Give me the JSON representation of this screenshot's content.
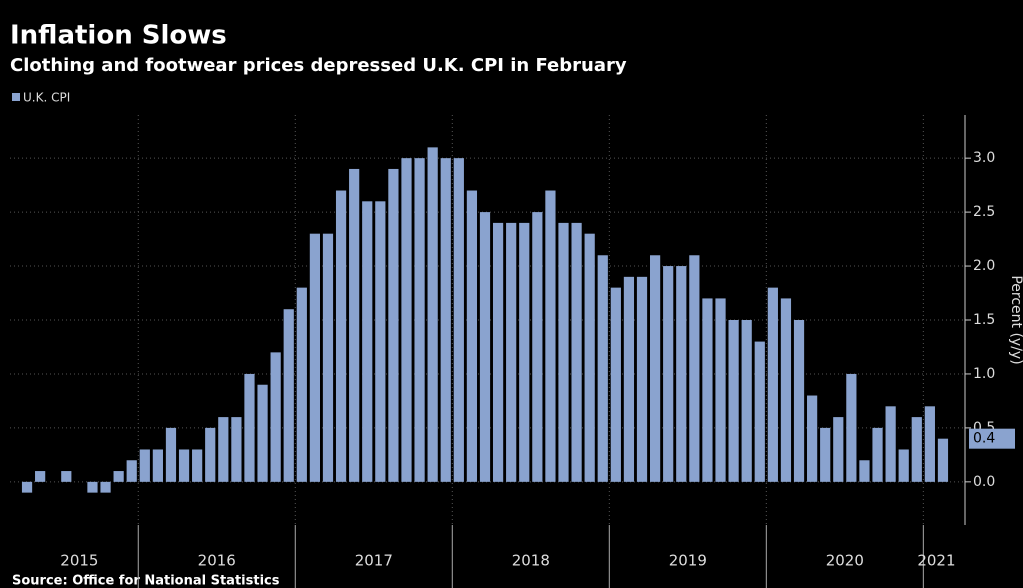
{
  "chart_data": {
    "type": "bar",
    "title": "Inflation Slows",
    "subtitle": "Clothing and footwear prices depressed U.K. CPI in February",
    "source": "Source: Office for National Statistics",
    "y_axis_label": "Percent (y/y)",
    "categories": [
      "2015",
      null,
      null,
      null,
      null,
      null,
      null,
      null,
      null,
      "2016",
      null,
      null,
      null,
      null,
      null,
      null,
      null,
      null,
      null,
      null,
      null,
      "2017",
      null,
      null,
      null,
      null,
      null,
      null,
      null,
      null,
      null,
      null,
      null,
      "2018",
      null,
      null,
      null,
      null,
      null,
      null,
      null,
      null,
      null,
      null,
      null,
      "2019",
      null,
      null,
      null,
      null,
      null,
      null,
      null,
      null,
      null,
      null,
      null,
      "2020",
      null,
      null,
      null,
      null,
      null,
      null,
      null,
      null,
      null,
      null,
      null,
      "2021",
      null
    ],
    "series": [
      {
        "name": "U.K. CPI",
        "color": "#8aa3cf",
        "values": [
          -0.1,
          0.1,
          0.0,
          0.1,
          0.0,
          -0.1,
          -0.1,
          0.1,
          0.2,
          0.3,
          0.3,
          0.5,
          0.3,
          0.3,
          0.5,
          0.6,
          0.6,
          1.0,
          0.9,
          1.2,
          1.6,
          1.8,
          2.3,
          2.3,
          2.7,
          2.9,
          2.6,
          2.6,
          2.9,
          3.0,
          3.0,
          3.1,
          3.0,
          3.0,
          2.7,
          2.5,
          2.4,
          2.4,
          2.4,
          2.5,
          2.7,
          2.4,
          2.4,
          2.3,
          2.1,
          1.8,
          1.9,
          1.9,
          2.1,
          2.0,
          2.0,
          2.1,
          1.7,
          1.7,
          1.5,
          1.5,
          1.3,
          1.8,
          1.7,
          1.5,
          0.8,
          0.5,
          0.6,
          1.0,
          0.2,
          0.5,
          0.7,
          0.3,
          0.6,
          0.7,
          0.4
        ]
      }
    ],
    "ylim": [
      -0.4,
      3.4
    ],
    "yticks": [
      {
        "value": 0,
        "label": "0.0"
      },
      {
        "value": 0.5,
        "label": "0.5"
      },
      {
        "value": 1,
        "label": "1.0"
      },
      {
        "value": 1.5,
        "label": "1.5"
      },
      {
        "value": 2,
        "label": "2.0"
      },
      {
        "value": 2.5,
        "label": "2.5"
      },
      {
        "value": 3,
        "label": "3.0"
      }
    ],
    "grid": true,
    "legend": "top-left"
  }
}
